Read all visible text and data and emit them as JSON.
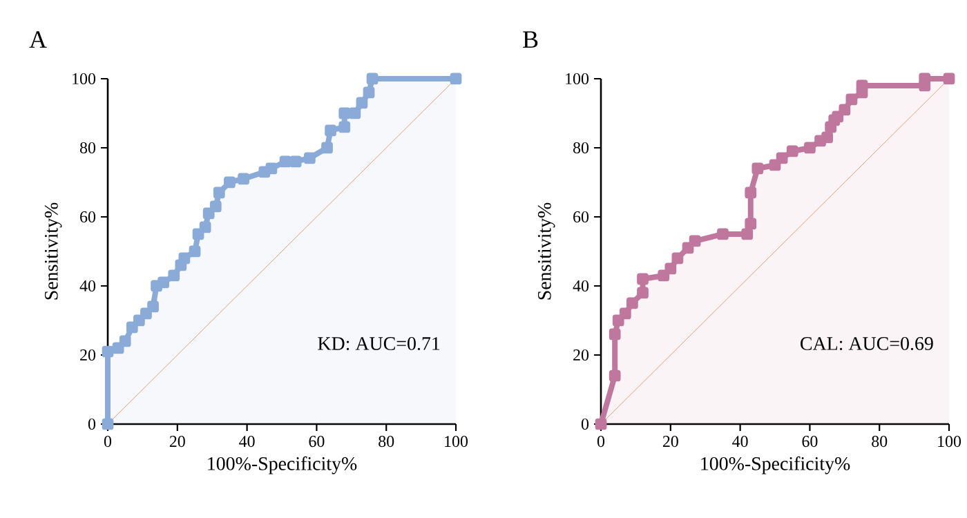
{
  "chart_data": [
    {
      "type": "line",
      "title": "A",
      "xlabel": "100%-Specificity%",
      "ylabel": "Sensitivity%",
      "xlim": [
        0,
        100
      ],
      "ylim": [
        0,
        100
      ],
      "xticks": [
        0,
        20,
        40,
        60,
        80,
        100
      ],
      "yticks": [
        0,
        20,
        40,
        60,
        80,
        100
      ],
      "marker": "square",
      "annotations": [
        "KD: AUC=0.71"
      ],
      "series": [
        {
          "color": "#8aaad8",
          "x": [
            0,
            0,
            3,
            5,
            7,
            9,
            11,
            13,
            14,
            16,
            19,
            21,
            22,
            25,
            26,
            28,
            29,
            31,
            32,
            35,
            39,
            45,
            47,
            51,
            54,
            58,
            63,
            64,
            68,
            68,
            71,
            73,
            75,
            76,
            100
          ],
          "values": [
            0,
            21,
            22,
            24,
            28,
            30,
            32,
            34,
            40,
            41,
            43,
            46,
            48,
            50,
            55,
            57,
            61,
            63,
            67,
            70,
            71,
            73,
            74,
            76,
            76,
            77,
            80,
            85,
            86,
            90,
            90,
            93,
            96,
            100,
            100
          ]
        },
        {
          "type": "line",
          "marker": "none",
          "color": "#e0a080",
          "x": [
            0,
            100
          ],
          "values": [
            0,
            100
          ]
        }
      ]
    },
    {
      "type": "line",
      "title": "B",
      "xlabel": "100%-Specificity%",
      "ylabel": "Sensitivity%",
      "xlim": [
        0,
        100
      ],
      "ylim": [
        0,
        100
      ],
      "xticks": [
        0,
        20,
        40,
        60,
        80,
        100
      ],
      "yticks": [
        0,
        20,
        40,
        60,
        80,
        100
      ],
      "marker": "square",
      "annotations": [
        "CAL: AUC=0.69"
      ],
      "series": [
        {
          "color": "#c0779e",
          "x": [
            0,
            4,
            4,
            5,
            7,
            9,
            12,
            12,
            18,
            20,
            22,
            25,
            27,
            35,
            42,
            43,
            43,
            45,
            50,
            52,
            55,
            60,
            63,
            65,
            66,
            67,
            68,
            70,
            72,
            75,
            75,
            93,
            93,
            100
          ],
          "values": [
            0,
            14,
            26,
            30,
            32,
            35,
            38,
            42,
            43,
            45,
            48,
            51,
            53,
            55,
            55,
            58,
            67,
            74,
            75,
            77,
            79,
            80,
            82,
            83,
            86,
            88,
            89,
            91,
            94,
            96,
            98,
            98,
            100,
            100
          ]
        },
        {
          "type": "line",
          "marker": "none",
          "color": "#e0a080",
          "x": [
            0,
            100
          ],
          "values": [
            0,
            100
          ]
        }
      ]
    }
  ]
}
